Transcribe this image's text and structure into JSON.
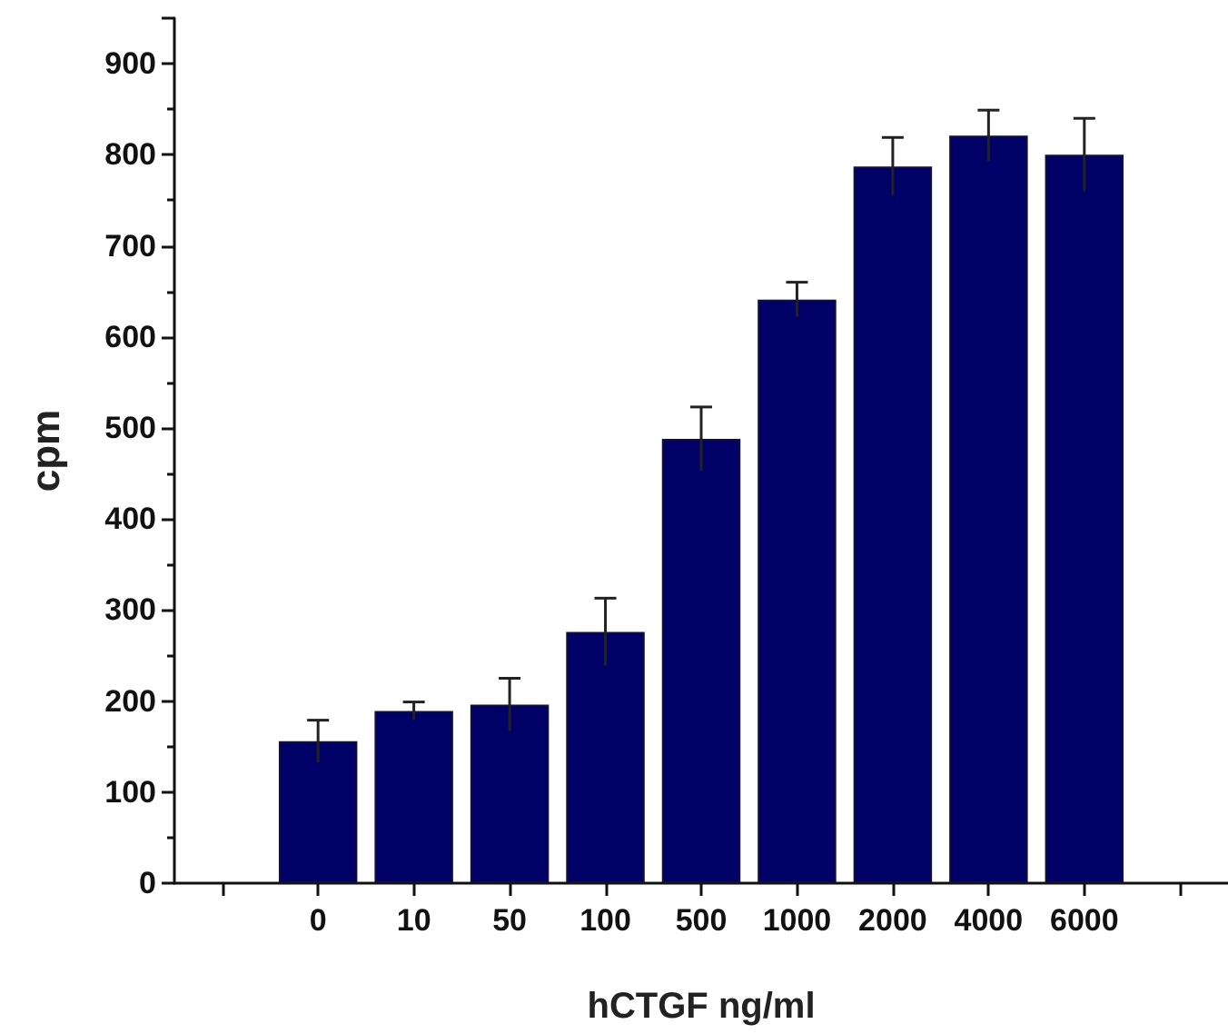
{
  "chart_data": {
    "type": "bar",
    "xlabel": "hCTGF ng/ml",
    "ylabel": "cpm",
    "categories": [
      "0",
      "10",
      "50",
      "100",
      "500",
      "1000",
      "2000",
      "4000",
      "6000"
    ],
    "values": [
      156,
      189,
      196,
      276,
      488,
      641,
      787,
      821,
      800
    ],
    "errors": [
      23,
      10,
      29,
      37,
      35,
      19,
      32,
      28,
      40
    ],
    "color": "#000066",
    "ylim": [
      0,
      950
    ],
    "yticks": [
      0,
      100,
      200,
      300,
      400,
      500,
      600,
      700,
      800,
      900
    ]
  }
}
